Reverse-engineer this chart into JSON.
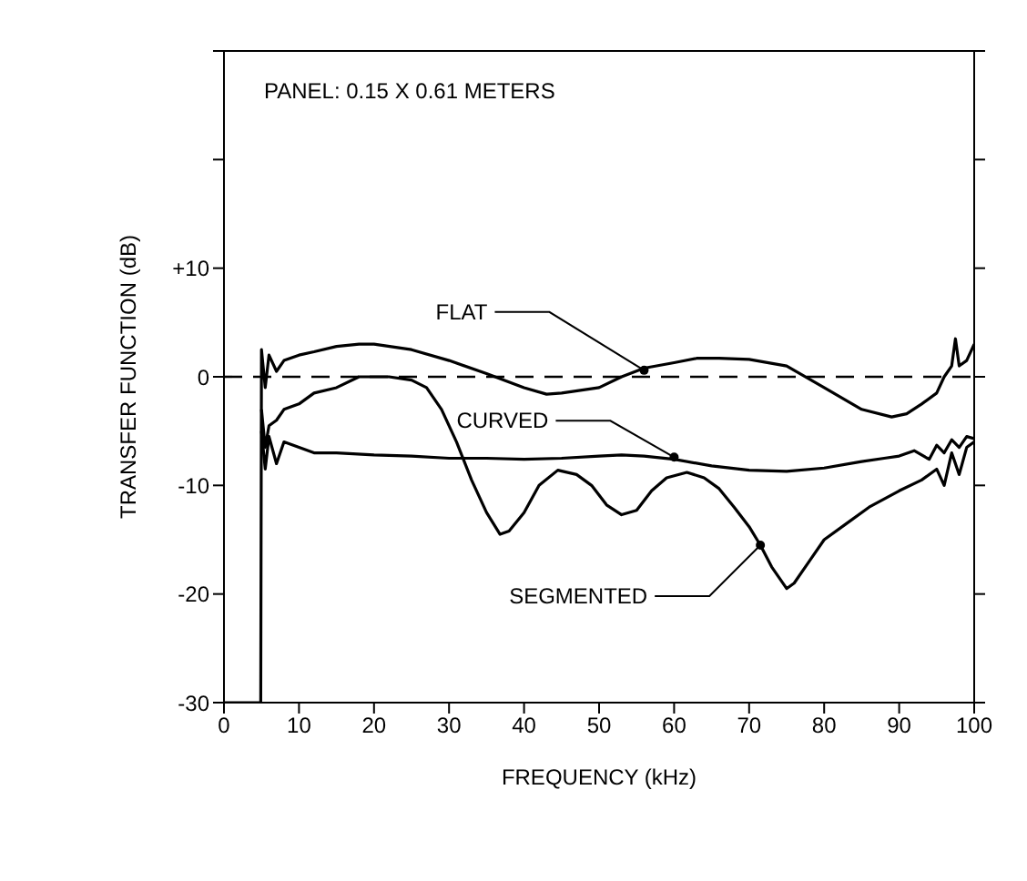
{
  "chart_data": {
    "type": "line",
    "xlabel": "FREQUENCY  (kHz)",
    "ylabel": "TRANSFER FUNCTION (dB)",
    "xlim": [
      0,
      100
    ],
    "xticks": [
      0,
      10,
      20,
      30,
      40,
      50,
      60,
      70,
      80,
      90,
      100
    ],
    "ylim": [
      -30,
      30
    ],
    "yticks": [
      -30,
      -20,
      -10,
      0,
      {
        "value": 10,
        "label": "+10"
      },
      {
        "value": 20,
        "label": null
      },
      {
        "value": 30,
        "label": null
      }
    ],
    "marker": "none",
    "line_style": "solid",
    "ref_lines": [
      {
        "axis": "y",
        "value": 0,
        "color": "#000000",
        "line_style": "dashed"
      }
    ],
    "annotations": [
      "PANEL: 0.15 X 0.61 METERS",
      {
        "text": "FLAT",
        "x": 56,
        "y": 0.6
      },
      {
        "text": "CURVED",
        "x": 60,
        "y": -7.4
      },
      {
        "text": "SEGMENTED",
        "x": 71.5,
        "y": -15.5
      }
    ],
    "series": [
      {
        "color": "#000000",
        "x": [
          0,
          4.9,
          5,
          5.5,
          6,
          7,
          8,
          10,
          12,
          15,
          18,
          20,
          25,
          30,
          35,
          40,
          43,
          45,
          50,
          53,
          56,
          60,
          63,
          66,
          70,
          75,
          80,
          85,
          89,
          91,
          93,
          95,
          96,
          97,
          97.5,
          98,
          99,
          100
        ],
        "values": [
          -30,
          -30,
          2.5,
          -1,
          2,
          0.5,
          1.5,
          2,
          2.3,
          2.8,
          3,
          3,
          2.5,
          1.5,
          0.3,
          -1,
          -1.6,
          -1.5,
          -1,
          0,
          0.8,
          1.3,
          1.7,
          1.7,
          1.6,
          1,
          -1,
          -3,
          -3.7,
          -3.4,
          -2.5,
          -1.5,
          0,
          1,
          3.5,
          1,
          1.5,
          3
        ]
      },
      {
        "color": "#000000",
        "x": [
          5,
          5.5,
          6,
          7,
          8,
          10,
          12,
          15,
          20,
          25,
          30,
          35,
          40,
          45,
          50,
          53,
          56,
          60,
          65,
          70,
          75,
          80,
          85,
          88,
          90,
          92,
          94,
          95,
          96,
          97,
          98,
          99,
          100
        ],
        "values": [
          -5,
          -8.5,
          -5.5,
          -8,
          -6,
          -6.5,
          -7,
          -7,
          -7.2,
          -7.3,
          -7.5,
          -7.5,
          -7.6,
          -7.5,
          -7.3,
          -7.2,
          -7.3,
          -7.6,
          -8.2,
          -8.6,
          -8.7,
          -8.4,
          -7.8,
          -7.5,
          -7.3,
          -6.8,
          -7.6,
          -6.3,
          -7,
          -5.8,
          -6.5,
          -5.5,
          -5.7
        ]
      },
      {
        "color": "#000000",
        "x": [
          5,
          5.5,
          6,
          7,
          8,
          10,
          12,
          15,
          18,
          20,
          22,
          25,
          27,
          29,
          31,
          33,
          35,
          36.8,
          38,
          40,
          42,
          44.5,
          47,
          49,
          51,
          53,
          55,
          57,
          59,
          61.7,
          64,
          66,
          68,
          70,
          71.5,
          73,
          75,
          76,
          78,
          80,
          83,
          86,
          90,
          93,
          95,
          96,
          97,
          98,
          99,
          100
        ],
        "values": [
          -3,
          -6.5,
          -4.5,
          -4,
          -3,
          -2.5,
          -1.5,
          -1,
          0,
          0,
          0,
          -0.3,
          -1,
          -3,
          -6,
          -9.5,
          -12.5,
          -14.5,
          -14.2,
          -12.5,
          -10,
          -8.6,
          -9,
          -10,
          -11.8,
          -12.7,
          -12.3,
          -10.5,
          -9.3,
          -8.8,
          -9.3,
          -10.3,
          -12,
          -13.8,
          -15.5,
          -17.5,
          -19.5,
          -19,
          -17,
          -15,
          -13.5,
          -12,
          -10.5,
          -9.5,
          -8.5,
          -10,
          -7,
          -9,
          -6.5,
          -6
        ]
      }
    ]
  }
}
